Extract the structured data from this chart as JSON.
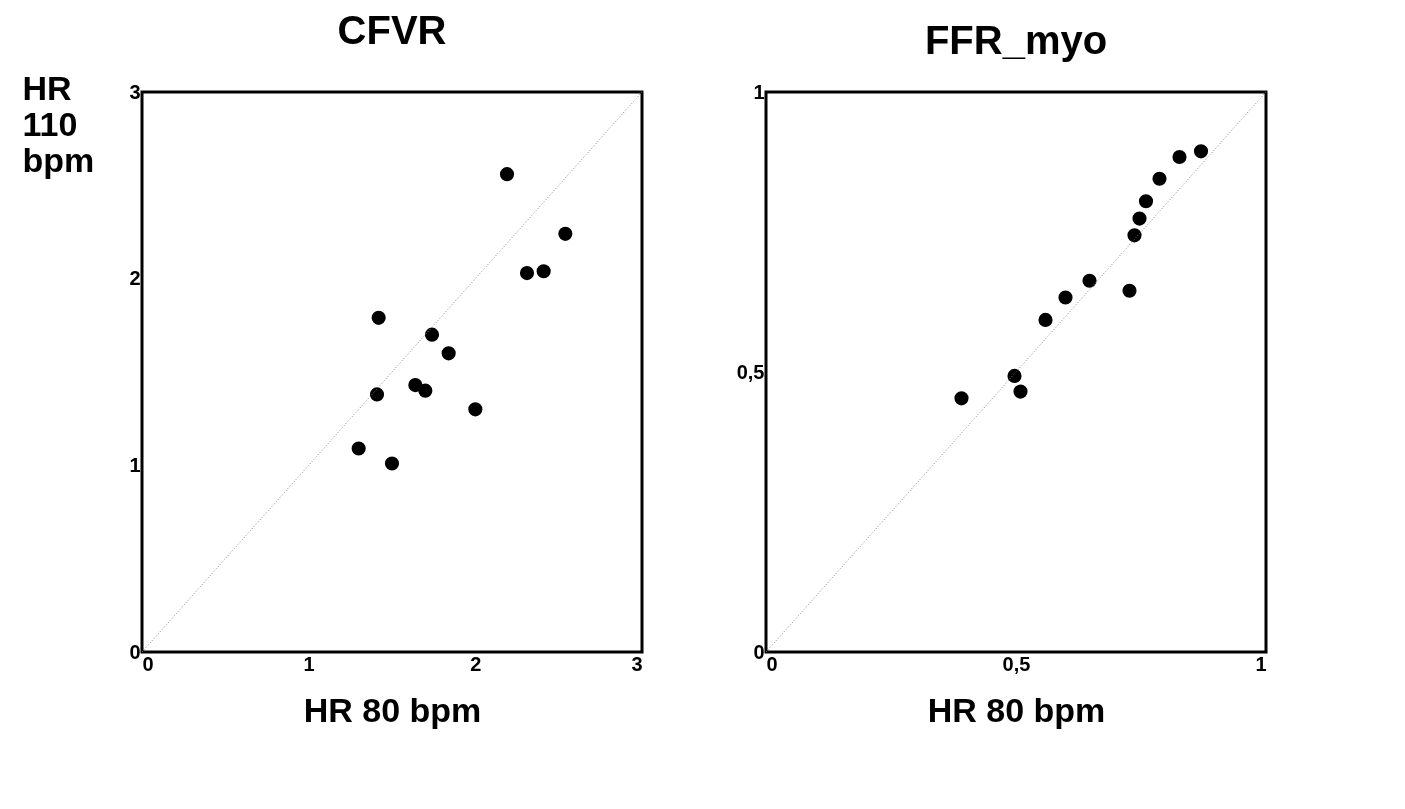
{
  "chart_data": [
    {
      "type": "scatter",
      "title": "CFVR",
      "xlabel": "HR 80 bpm",
      "ylabel": "HR 110 bpm",
      "xlim": [
        0,
        3
      ],
      "ylim": [
        0,
        3
      ],
      "xticks": [
        0,
        1,
        2,
        3
      ],
      "yticks": [
        0,
        1,
        2,
        3
      ],
      "grid": false,
      "series": [
        {
          "marker": "circle",
          "color": "#000000",
          "x": [
            2.19,
            2.54,
            2.31,
            2.41,
            1.42,
            1.74,
            1.84,
            1.64,
            1.7,
            1.41,
            2.0,
            1.3,
            1.5
          ],
          "values": [
            2.56,
            2.24,
            2.03,
            2.04,
            1.79,
            1.7,
            1.6,
            1.43,
            1.4,
            1.38,
            1.3,
            1.09,
            1.01
          ]
        },
        {
          "type": "line",
          "color": "#888888",
          "line_style": "dotted",
          "x": [
            0,
            3
          ],
          "values": [
            0,
            3
          ]
        }
      ]
    },
    {
      "type": "scatter",
      "title": "FFR_myo",
      "xlabel": "HR 80 bpm",
      "xlim": [
        0,
        1
      ],
      "ylim": [
        0,
        1
      ],
      "xticks": [
        0,
        {
          "value": 0.5,
          "label": "0,5"
        },
        1
      ],
      "yticks": [
        0,
        {
          "value": 0.5,
          "label": "0,5"
        },
        1
      ],
      "grid": false,
      "series": [
        {
          "marker": "circle",
          "color": "#000000",
          "x": [
            0.87,
            0.827,
            0.787,
            0.76,
            0.747,
            0.737,
            0.727,
            0.647,
            0.599,
            0.559,
            0.497,
            0.509,
            0.391
          ],
          "values": [
            0.894,
            0.884,
            0.845,
            0.805,
            0.774,
            0.744,
            0.645,
            0.663,
            0.633,
            0.593,
            0.493,
            0.465,
            0.453
          ]
        },
        {
          "type": "line",
          "color": "#888888",
          "line_style": "dotted",
          "x": [
            0,
            1
          ],
          "values": [
            0,
            1
          ]
        }
      ]
    }
  ]
}
